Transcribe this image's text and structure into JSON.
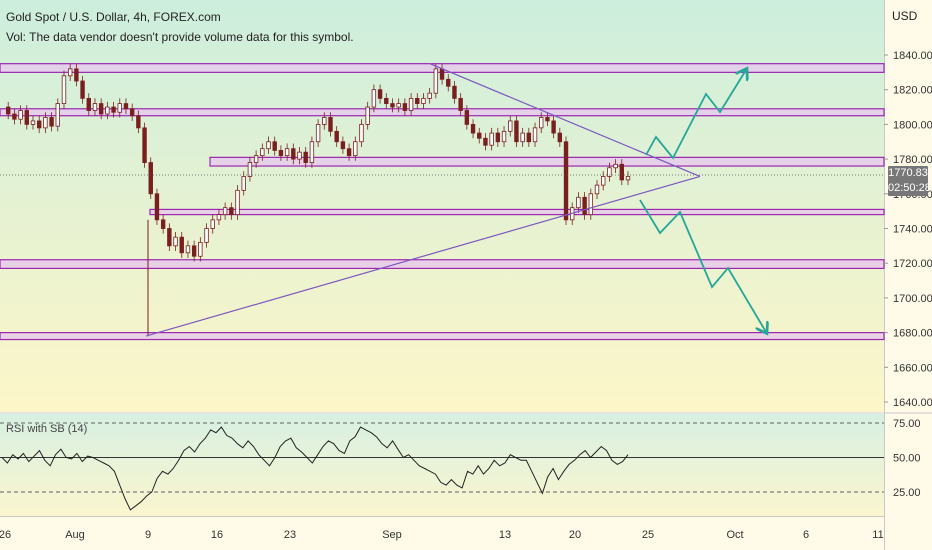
{
  "header": {
    "title": "Gold Spot / U.S. Dollar, 4h, FOREX.com",
    "volume_note": "Vol: The data vendor doesn't provide volume data for this symbol."
  },
  "price_axis": {
    "unit": "USD",
    "ticks": [
      "1840.00",
      "1820.00",
      "1800.00",
      "1780.00",
      "1760.00",
      "1740.00",
      "1720.00",
      "1700.00",
      "1680.00",
      "1660.00",
      "1640.00"
    ],
    "tick_values": [
      1840,
      1820,
      1800,
      1780,
      1760,
      1740,
      1720,
      1700,
      1680,
      1660,
      1640
    ],
    "current_price": "1770.83",
    "countdown": "02:50:28"
  },
  "rsi": {
    "label": "RSI with SB (14)",
    "ticks": [
      "75.00",
      "50.00",
      "25.00"
    ],
    "tick_values": [
      75,
      50,
      25
    ]
  },
  "time_axis": {
    "labels": [
      "26",
      "Aug",
      "9",
      "16",
      "23",
      "Sep",
      "13",
      "20",
      "25",
      "Oct",
      "6",
      "11"
    ]
  },
  "colors": {
    "zone_line": "#9c27b0",
    "zone_fill": "#e7c6ee",
    "triangle": "#7e57c2",
    "projection": "#26a69a",
    "candle": "#7a1f1f",
    "bg_top": "#cdeedd",
    "bg_bottom": "#fdf6c8"
  },
  "chart_data": {
    "type": "candlestick",
    "price_range": [
      1630,
      1855
    ],
    "rsi_range": [
      0,
      100
    ],
    "horizontal_zones": [
      {
        "from": 1830,
        "to": 1835
      },
      {
        "from": 1805,
        "to": 1809
      },
      {
        "from": 1776,
        "to": 1781
      },
      {
        "from": 1748,
        "to": 1751
      },
      {
        "from": 1717,
        "to": 1722
      },
      {
        "from": 1676,
        "to": 1680
      }
    ],
    "path_points": [
      [
        "26",
        1810
      ],
      [
        "26",
        1806
      ],
      [
        "26",
        1803
      ],
      [
        "26",
        1808
      ],
      [
        "26",
        1800
      ],
      [
        "26",
        1802
      ],
      [
        "26",
        1798
      ],
      [
        "26",
        1804
      ],
      [
        "26",
        1799
      ],
      [
        "26",
        1812
      ],
      [
        "Aug",
        1828
      ],
      [
        "Aug",
        1832
      ],
      [
        "Aug",
        1825
      ],
      [
        "Aug",
        1815
      ],
      [
        "Aug",
        1808
      ],
      [
        "Aug",
        1812
      ],
      [
        "Aug",
        1806
      ],
      [
        "Aug",
        1810
      ],
      [
        "Aug",
        1807
      ],
      [
        "Aug",
        1812
      ],
      [
        "Aug",
        1809
      ],
      [
        "Aug",
        1805
      ],
      [
        "Aug",
        1798
      ],
      [
        "Aug",
        1778
      ],
      [
        "Aug",
        1760
      ],
      [
        "Aug",
        1745
      ],
      [
        "9",
        1740
      ],
      [
        "9",
        1730
      ],
      [
        "9",
        1735
      ],
      [
        "9",
        1726
      ],
      [
        "9",
        1730
      ],
      [
        "9",
        1724
      ],
      [
        "9",
        1732
      ],
      [
        "9",
        1740
      ],
      [
        "9",
        1745
      ],
      [
        "9",
        1748
      ],
      [
        "9",
        1752
      ],
      [
        "9",
        1748
      ],
      [
        "16",
        1762
      ],
      [
        "16",
        1770
      ],
      [
        "16",
        1778
      ],
      [
        "16",
        1782
      ],
      [
        "16",
        1786
      ],
      [
        "16",
        1790
      ],
      [
        "16",
        1785
      ],
      [
        "16",
        1782
      ],
      [
        "16",
        1786
      ],
      [
        "16",
        1780
      ],
      [
        "16",
        1784
      ],
      [
        "16",
        1778
      ],
      [
        "23",
        1790
      ],
      [
        "23",
        1800
      ],
      [
        "23",
        1804
      ],
      [
        "23",
        1796
      ],
      [
        "23",
        1790
      ],
      [
        "23",
        1786
      ],
      [
        "23",
        1782
      ],
      [
        "23",
        1790
      ],
      [
        "23",
        1800
      ],
      [
        "23",
        1810
      ],
      [
        "23",
        1820
      ],
      [
        "23",
        1815
      ],
      [
        "23",
        1812
      ],
      [
        "23",
        1810
      ],
      [
        "23",
        1812
      ],
      [
        "23",
        1808
      ],
      [
        "23",
        1815
      ],
      [
        "23",
        1812
      ],
      [
        "Sep",
        1815
      ],
      [
        "Sep",
        1818
      ],
      [
        "Sep",
        1832
      ],
      [
        "Sep",
        1826
      ],
      [
        "Sep",
        1822
      ],
      [
        "Sep",
        1815
      ],
      [
        "Sep",
        1808
      ],
      [
        "Sep",
        1800
      ],
      [
        "Sep",
        1795
      ],
      [
        "Sep",
        1792
      ],
      [
        "Sep",
        1788
      ],
      [
        "Sep",
        1795
      ],
      [
        "Sep",
        1790
      ],
      [
        "Sep",
        1796
      ],
      [
        "Sep",
        1802
      ],
      [
        "13",
        1790
      ],
      [
        "13",
        1795
      ],
      [
        "13",
        1790
      ],
      [
        "13",
        1798
      ],
      [
        "13",
        1804
      ],
      [
        "13",
        1802
      ],
      [
        "13",
        1795
      ],
      [
        "13",
        1790
      ],
      [
        "20",
        1745
      ],
      [
        "20",
        1752
      ],
      [
        "20",
        1758
      ],
      [
        "20",
        1748
      ],
      [
        "20",
        1760
      ],
      [
        "20",
        1765
      ],
      [
        "20",
        1770
      ],
      [
        "20",
        1775
      ],
      [
        "20",
        1777
      ],
      [
        "20",
        1768
      ],
      [
        "20",
        1770
      ]
    ],
    "triangle": {
      "upper": [
        [
          "Sep",
          1835
        ],
        [
          "25",
          1770
        ]
      ],
      "lower": [
        [
          "9",
          1678
        ],
        [
          "25",
          1770
        ]
      ]
    },
    "projections": [
      {
        "direction": "up",
        "points": [
          [
            "25",
            1778
          ],
          [
            "25",
            1790
          ],
          [
            "25",
            1780
          ],
          [
            "Oct",
            1808
          ],
          [
            "Oct",
            1800
          ],
          [
            "Oct",
            1833
          ]
        ]
      },
      {
        "direction": "down",
        "points": [
          [
            "25",
            1755
          ],
          [
            "25",
            1736
          ],
          [
            "25",
            1746
          ],
          [
            "Oct",
            1706
          ],
          [
            "Oct",
            1716
          ],
          [
            "Oct",
            1680
          ]
        ]
      }
    ],
    "rsi_series": [
      50,
      46,
      52,
      49,
      53,
      47,
      51,
      55,
      48,
      44,
      52,
      56,
      50,
      49,
      53,
      47,
      51,
      50,
      48,
      46,
      44,
      40,
      30,
      20,
      12,
      15,
      18,
      22,
      25,
      35,
      40,
      38,
      42,
      48,
      55,
      58,
      54,
      60,
      64,
      70,
      68,
      72,
      66,
      64,
      60,
      57,
      62,
      58,
      52,
      48,
      44,
      50,
      58,
      62,
      64,
      57,
      54,
      50,
      46,
      52,
      58,
      62,
      60,
      55,
      53,
      62,
      65,
      72,
      70,
      68,
      65,
      60,
      57,
      62,
      56,
      50,
      52,
      48,
      44,
      42,
      40,
      38,
      32,
      30,
      34,
      30,
      28,
      40,
      38,
      44,
      38,
      42,
      48,
      44,
      46,
      52,
      50,
      48,
      48,
      40,
      32,
      24,
      36,
      42,
      34,
      40,
      45,
      48,
      52,
      55,
      50,
      54,
      58,
      55,
      48,
      45,
      47,
      52
    ]
  }
}
